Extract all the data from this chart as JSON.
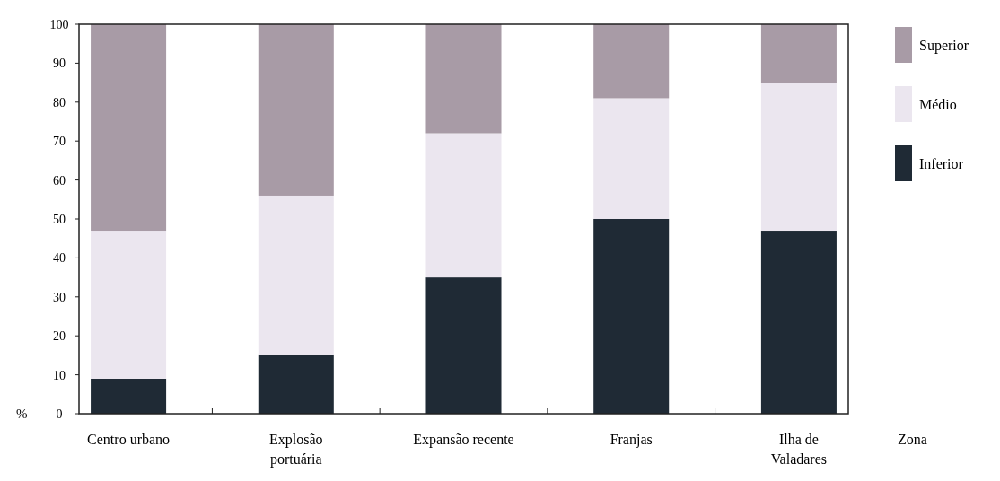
{
  "chart_data": {
    "type": "bar",
    "stacked": true,
    "xlabel": "Zona",
    "ylabel": "%",
    "categories": [
      "Centro urbano",
      "Explosão\nportuária",
      "Expansão recente",
      "Franjas",
      "Ilha de\nValadares"
    ],
    "series": [
      {
        "name": "Inferior",
        "color": "#1f2a35",
        "values": [
          9,
          15,
          35,
          50,
          47
        ]
      },
      {
        "name": "Médio",
        "color": "#ebe6ef",
        "values": [
          38,
          41,
          37,
          31,
          38
        ]
      },
      {
        "name": "Superior",
        "color": "#a89ba6",
        "values": [
          53,
          44,
          28,
          19,
          15
        ]
      }
    ],
    "ylim": [
      0,
      100
    ],
    "yticks": [
      0,
      10,
      20,
      30,
      40,
      50,
      60,
      70,
      80,
      90,
      100
    ],
    "legend": "top right",
    "grid": false
  }
}
